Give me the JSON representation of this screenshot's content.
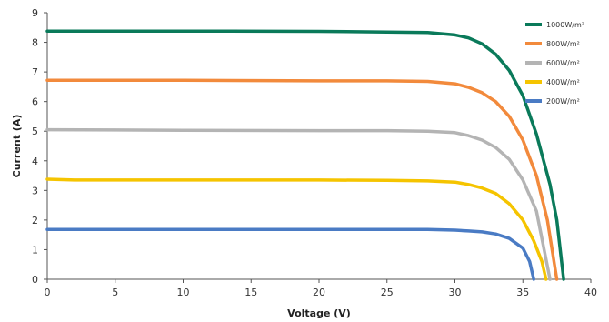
{
  "chart_data": {
    "type": "line",
    "title": "",
    "xlabel": "Voltage (V)",
    "ylabel": "Current (A)",
    "xlim": [
      0,
      40
    ],
    "ylim": [
      0,
      9
    ],
    "x_ticks": [
      0,
      5,
      10,
      15,
      20,
      25,
      30,
      35,
      40
    ],
    "y_ticks": [
      0,
      1,
      2,
      3,
      4,
      5,
      6,
      7,
      8,
      9
    ],
    "grid": false,
    "legend_position": "top-right",
    "series": [
      {
        "name": "1000W/m²",
        "color": "#0a7a5a",
        "points": [
          [
            0,
            8.38
          ],
          [
            10,
            8.38
          ],
          [
            20,
            8.37
          ],
          [
            25,
            8.35
          ],
          [
            28,
            8.33
          ],
          [
            30,
            8.25
          ],
          [
            31,
            8.15
          ],
          [
            32,
            7.95
          ],
          [
            33,
            7.6
          ],
          [
            34,
            7.05
          ],
          [
            35,
            6.2
          ],
          [
            36,
            4.9
          ],
          [
            37,
            3.2
          ],
          [
            37.5,
            2.0
          ],
          [
            38,
            0
          ]
        ]
      },
      {
        "name": "800W/m²",
        "color": "#f28a3c",
        "points": [
          [
            0,
            6.72
          ],
          [
            10,
            6.72
          ],
          [
            20,
            6.7
          ],
          [
            25,
            6.7
          ],
          [
            28,
            6.68
          ],
          [
            30,
            6.6
          ],
          [
            31,
            6.48
          ],
          [
            32,
            6.3
          ],
          [
            33,
            6.0
          ],
          [
            34,
            5.5
          ],
          [
            35,
            4.7
          ],
          [
            36,
            3.5
          ],
          [
            36.8,
            2.0
          ],
          [
            37.5,
            0
          ]
        ]
      },
      {
        "name": "600W/m²",
        "color": "#b4b4b4",
        "points": [
          [
            0,
            5.05
          ],
          [
            10,
            5.03
          ],
          [
            20,
            5.02
          ],
          [
            25,
            5.02
          ],
          [
            28,
            5.0
          ],
          [
            30,
            4.95
          ],
          [
            31,
            4.85
          ],
          [
            32,
            4.7
          ],
          [
            33,
            4.45
          ],
          [
            34,
            4.05
          ],
          [
            35,
            3.35
          ],
          [
            36,
            2.3
          ],
          [
            37,
            0
          ]
        ]
      },
      {
        "name": "400W/m²",
        "color": "#f5c400",
        "points": [
          [
            0,
            3.38
          ],
          [
            2,
            3.35
          ],
          [
            10,
            3.35
          ],
          [
            20,
            3.35
          ],
          [
            25,
            3.34
          ],
          [
            28,
            3.32
          ],
          [
            30,
            3.28
          ],
          [
            31,
            3.2
          ],
          [
            32,
            3.08
          ],
          [
            33,
            2.9
          ],
          [
            34,
            2.55
          ],
          [
            35,
            2.0
          ],
          [
            35.8,
            1.3
          ],
          [
            36.4,
            0.6
          ],
          [
            36.7,
            0
          ]
        ]
      },
      {
        "name": "200W/m²",
        "color": "#4a7bc4",
        "points": [
          [
            0,
            1.68
          ],
          [
            10,
            1.68
          ],
          [
            20,
            1.68
          ],
          [
            28,
            1.68
          ],
          [
            30,
            1.66
          ],
          [
            31,
            1.63
          ],
          [
            32,
            1.6
          ],
          [
            33,
            1.53
          ],
          [
            34,
            1.38
          ],
          [
            35,
            1.05
          ],
          [
            35.5,
            0.6
          ],
          [
            35.8,
            0
          ]
        ]
      }
    ]
  }
}
